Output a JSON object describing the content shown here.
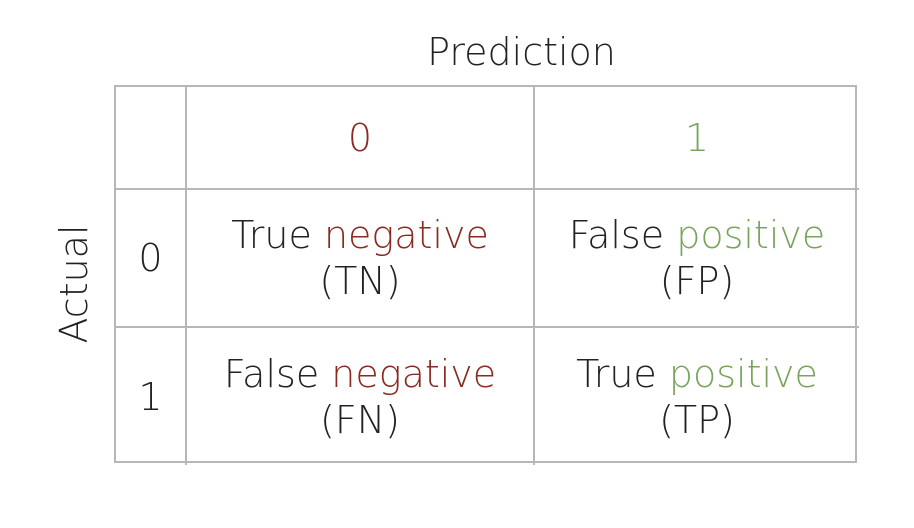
{
  "title_top": "Prediction",
  "title_side": "Actual",
  "col_headers": [
    "0",
    "1"
  ],
  "row_headers": [
    "0",
    "1"
  ],
  "cells": [
    [
      {
        "word1": "True",
        "word2": "negative",
        "abbr": "(TN)"
      },
      {
        "word1": "False",
        "word2": "positive",
        "abbr": "(FP)"
      }
    ],
    [
      {
        "word1": "False",
        "word2": "negative",
        "abbr": "(FN)"
      },
      {
        "word1": "True",
        "word2": "positive",
        "abbr": "(TP)"
      }
    ]
  ],
  "colors": {
    "negative": "#8b2a22",
    "positive": "#79a45c",
    "text": "#222222",
    "grid": "#b7b7b7"
  }
}
